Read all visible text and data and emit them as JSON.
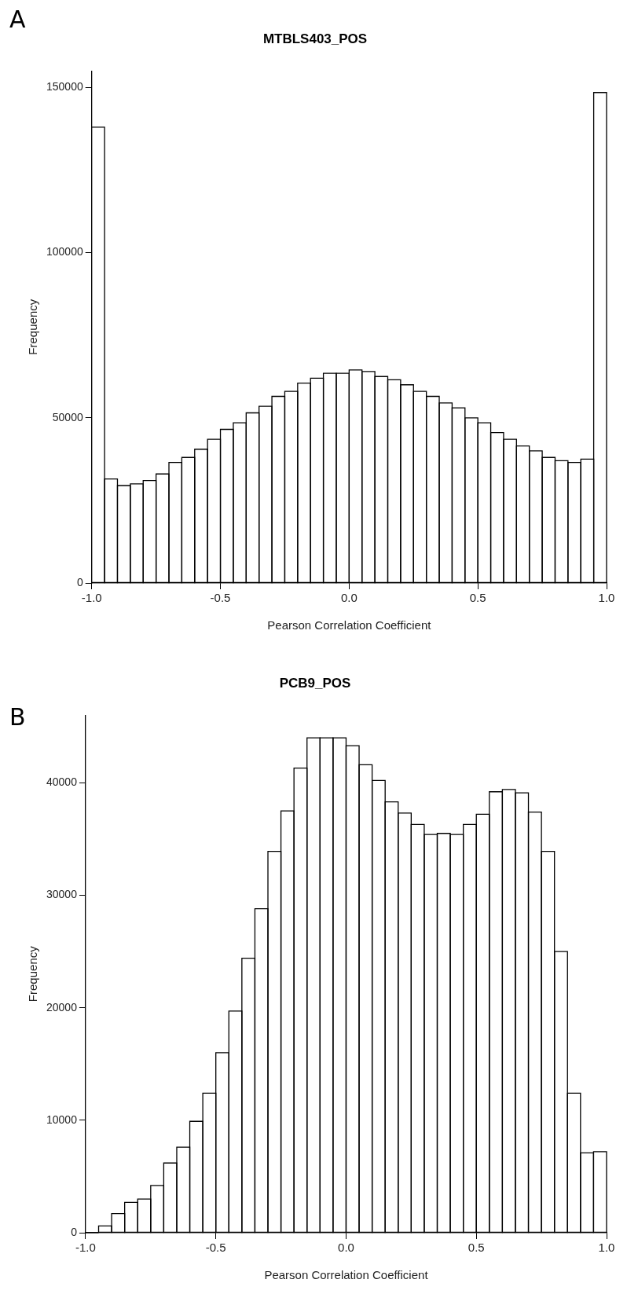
{
  "chart_data": [
    {
      "type": "histogram",
      "title": "MTBLS403_POS",
      "xlabel": "Pearson Correlation Coefficient",
      "ylabel": "Frequency",
      "annotations": [
        "A"
      ],
      "bins": [
        -1,
        -0.95,
        -0.9,
        -0.85,
        -0.8,
        -0.75,
        -0.7,
        -0.65,
        -0.6,
        -0.55,
        -0.5,
        -0.45,
        -0.4,
        -0.35,
        -0.3,
        -0.25,
        -0.2,
        -0.15,
        -0.1,
        -0.05,
        0,
        0.05,
        0.1,
        0.15,
        0.2,
        0.25,
        0.3,
        0.35,
        0.4,
        0.45,
        0.5,
        0.55,
        0.6,
        0.65,
        0.7,
        0.75,
        0.8,
        0.85,
        0.9,
        0.95,
        1
      ],
      "values": [
        138000,
        31500,
        29500,
        30000,
        31000,
        33000,
        36500,
        38000,
        40500,
        43500,
        46500,
        48500,
        51500,
        53500,
        56500,
        58000,
        60500,
        62000,
        63500,
        63500,
        64500,
        64000,
        62500,
        61500,
        60000,
        58000,
        56500,
        54500,
        53000,
        50000,
        48500,
        45500,
        43500,
        41500,
        40000,
        38000,
        37000,
        36500,
        37500,
        148500
      ],
      "color": "#ffffff",
      "xlim": [
        -1,
        1
      ],
      "xticks": [
        {
          "value": -1,
          "label": "-1.0"
        },
        {
          "value": -0.5,
          "label": "-0.5"
        },
        {
          "value": 0,
          "label": "0.0"
        },
        {
          "value": 0.5,
          "label": "0.5"
        },
        {
          "value": 1,
          "label": "1.0"
        }
      ],
      "ylim": [
        0,
        155000
      ],
      "yticks": [
        0,
        50000,
        100000,
        150000
      ],
      "grid": false
    },
    {
      "type": "histogram",
      "title": "PCB9_POS",
      "xlabel": "Pearson Correlation Coefficient",
      "ylabel": "Frequency",
      "annotations": [
        "B"
      ],
      "bins": [
        -1,
        -0.95,
        -0.9,
        -0.85,
        -0.8,
        -0.75,
        -0.7,
        -0.65,
        -0.6,
        -0.55,
        -0.5,
        -0.45,
        -0.4,
        -0.35,
        -0.3,
        -0.25,
        -0.2,
        -0.15,
        -0.1,
        -0.05,
        0,
        0.05,
        0.1,
        0.15,
        0.2,
        0.25,
        0.3,
        0.35,
        0.4,
        0.45,
        0.5,
        0.55,
        0.6,
        0.65,
        0.7,
        0.75,
        0.8,
        0.85,
        0.9,
        0.95,
        1
      ],
      "values": [
        0,
        600,
        1700,
        2700,
        3000,
        4200,
        6200,
        7600,
        9900,
        12400,
        16000,
        19700,
        24400,
        28800,
        33900,
        37500,
        41300,
        44000,
        44000,
        44000,
        43300,
        41600,
        40200,
        38300,
        37300,
        36300,
        35400,
        35500,
        35400,
        36300,
        37200,
        39200,
        39400,
        39100,
        37400,
        33900,
        25000,
        12400,
        7100,
        7200
      ],
      "color": "#ffffff",
      "xlim": [
        -1,
        1
      ],
      "xticks": [
        {
          "value": -1,
          "label": "-1.0"
        },
        {
          "value": -0.5,
          "label": "-0.5"
        },
        {
          "value": 0,
          "label": "0.0"
        },
        {
          "value": 0.5,
          "label": "0.5"
        },
        {
          "value": 1,
          "label": "1.0"
        }
      ],
      "ylim": [
        0,
        46000
      ],
      "yticks": [
        0,
        10000,
        20000,
        30000,
        40000
      ],
      "grid": false
    }
  ]
}
